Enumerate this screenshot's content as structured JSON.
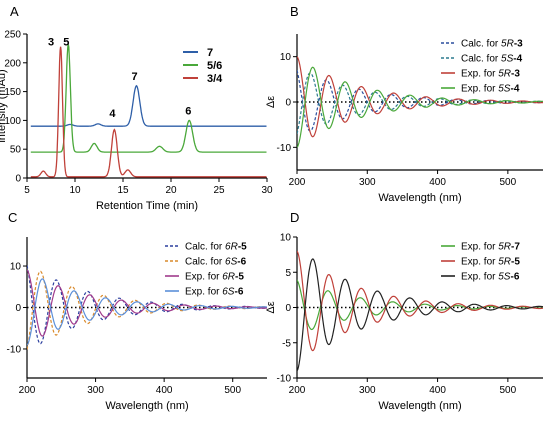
{
  "chart_data": [
    {
      "panel": "A",
      "type": "line",
      "xlabel": "Retention Time (min)",
      "ylabel": "intensity (mAu)",
      "xlim": [
        5,
        30
      ],
      "ylim": [
        0,
        250
      ],
      "xticks": [
        5,
        10,
        15,
        20,
        25,
        30
      ],
      "yticks": [
        0,
        50,
        100,
        150,
        200,
        250
      ],
      "legend_position": "right",
      "series": [
        {
          "name": "7",
          "color": "#2e5fa8",
          "baseline": 90,
          "peaks": [
            {
              "x": 16.4,
              "h": 70,
              "w": 0.35
            },
            {
              "x": 12.4,
              "h": 4,
              "w": 0.3
            },
            {
              "x": 9.5,
              "h": 3,
              "w": 0.3
            }
          ]
        },
        {
          "name": "5/6",
          "color": "#4aa83a",
          "baseline": 45,
          "peaks": [
            {
              "x": 9.3,
              "h": 187,
              "w": 0.22
            },
            {
              "x": 12.0,
              "h": 15,
              "w": 0.3
            },
            {
              "x": 18.8,
              "h": 10,
              "w": 0.35
            },
            {
              "x": 21.9,
              "h": 55,
              "w": 0.35
            }
          ]
        },
        {
          "name": "3/4",
          "color": "#c0413a",
          "baseline": 2,
          "peaks": [
            {
              "x": 6.7,
              "h": 10,
              "w": 0.25
            },
            {
              "x": 8.5,
              "h": 226,
              "w": 0.2
            },
            {
              "x": 14.1,
              "h": 82,
              "w": 0.3
            },
            {
              "x": 15.5,
              "h": 12,
              "w": 0.3
            }
          ]
        }
      ],
      "peak_labels": [
        {
          "text": "3",
          "x": 7.5,
          "y": 230
        },
        {
          "text": "5",
          "x": 9.1,
          "y": 230
        },
        {
          "text": "4",
          "x": 13.9,
          "y": 106
        },
        {
          "text": "7",
          "x": 16.2,
          "y": 170
        },
        {
          "text": "6",
          "x": 21.8,
          "y": 110
        }
      ]
    },
    {
      "panel": "B",
      "type": "line",
      "xlabel": "Wavelength (nm)",
      "ylabel": "Δε",
      "xlim": [
        200,
        550
      ],
      "ylim": [
        -15,
        15
      ],
      "xticks": [
        200,
        300,
        400,
        500
      ],
      "yticks": [
        -10,
        0,
        10
      ],
      "legend_position": "top-right",
      "series": [
        {
          "name_prefix": "Calc. for ",
          "name_italic": "5R",
          "name_bold": "-3",
          "color": "#2b4f9e",
          "dash": true,
          "sign": 1,
          "amp": 8,
          "phase": 0.5
        },
        {
          "name_prefix": "Calc. for ",
          "name_italic": "5S",
          "name_bold": "-4",
          "color": "#2b7a8e",
          "dash": true,
          "sign": -1,
          "amp": 8,
          "phase": 0.5
        },
        {
          "name_prefix": "Exp. for ",
          "name_italic": "5R",
          "name_bold": "-3",
          "color": "#c0413a",
          "dash": false,
          "sign": 1,
          "amp": 10,
          "phase": 0
        },
        {
          "name_prefix": "Exp. for ",
          "name_italic": "5S",
          "name_bold": "-4",
          "color": "#4aa83a",
          "dash": false,
          "sign": -1,
          "amp": 10,
          "phase": 0
        }
      ]
    },
    {
      "panel": "C",
      "type": "line",
      "xlabel": "Wavelength (nm)",
      "ylabel": "",
      "xlim": [
        200,
        550
      ],
      "ylim": [
        -17,
        17
      ],
      "xticks": [
        200,
        300,
        400,
        500
      ],
      "yticks": [
        -10,
        0,
        10
      ],
      "legend_position": "top-right",
      "series": [
        {
          "name_prefix": "Calc. for ",
          "name_italic": "6R",
          "name_bold": "-5",
          "color": "#2b3f9e",
          "dash": true,
          "sign": 1,
          "amp": 11,
          "phase": 0.4
        },
        {
          "name_prefix": "Calc. for ",
          "name_italic": "6S",
          "name_bold": "-6",
          "color": "#d98a2b",
          "dash": true,
          "sign": -1,
          "amp": 11,
          "phase": 0.4
        },
        {
          "name_prefix": "Exp. for ",
          "name_italic": "6R",
          "name_bold": "-5",
          "color": "#a03a8c",
          "dash": false,
          "sign": 1,
          "amp": 9,
          "phase": 0
        },
        {
          "name_prefix": "Exp. for ",
          "name_italic": "6S",
          "name_bold": "-6",
          "color": "#5b8fd9",
          "dash": false,
          "sign": -1,
          "amp": 9,
          "phase": 0
        }
      ]
    },
    {
      "panel": "D",
      "type": "line",
      "xlabel": "Wavelength (nm)",
      "ylabel": "Δε",
      "xlim": [
        200,
        550
      ],
      "ylim": [
        -10,
        10
      ],
      "xticks": [
        200,
        300,
        400,
        500
      ],
      "yticks": [
        -10,
        -5,
        0,
        5,
        10
      ],
      "legend_position": "top-right",
      "series": [
        {
          "name_prefix": "Exp. for ",
          "name_italic": "5R",
          "name_bold": "-7",
          "color": "#4aa83a",
          "dash": false,
          "sign": 1,
          "amp": 4,
          "phase": 0.2
        },
        {
          "name_prefix": "Exp. for ",
          "name_italic": "5R",
          "name_bold": "-5",
          "color": "#c0413a",
          "dash": false,
          "sign": 1,
          "amp": 8,
          "phase": 0
        },
        {
          "name_prefix": "Exp. for ",
          "name_italic": "5S",
          "name_bold": "-6",
          "color": "#222222",
          "dash": false,
          "sign": -1,
          "amp": 9,
          "phase": 0
        }
      ]
    }
  ]
}
